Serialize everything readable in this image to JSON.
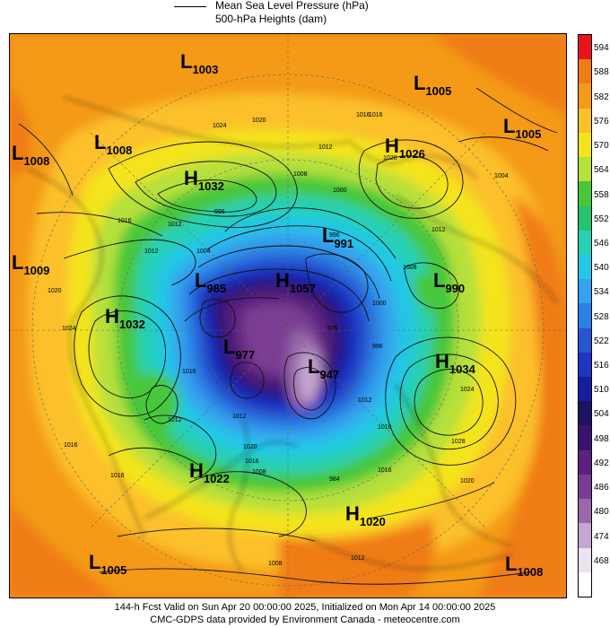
{
  "legend": {
    "line_label": "Mean Sea Level Pressure (hPa)",
    "fill_label": "500-hPa Heights (dam)"
  },
  "colorbar": {
    "levels": [
      "594",
      "588",
      "582",
      "576",
      "570",
      "564",
      "558",
      "552",
      "546",
      "540",
      "534",
      "528",
      "522",
      "516",
      "510",
      "504",
      "498",
      "492",
      "486",
      "480",
      "474",
      "468"
    ],
    "colors": [
      "#e8141c",
      "#f07c12",
      "#f49a18",
      "#fbc02a",
      "#f4e41e",
      "#b6e03a",
      "#46c83a",
      "#24c46e",
      "#26d0b4",
      "#24c8e6",
      "#34a4ee",
      "#2a80e4",
      "#2656d2",
      "#1e36c2",
      "#161e9e",
      "#1e1262",
      "#3a1270",
      "#5c2080",
      "#7a3c92",
      "#9868aa",
      "#c4a6d0",
      "#ece2f0",
      "#ffffff"
    ]
  },
  "systems": [
    {
      "type": "L",
      "value": "1003"
    },
    {
      "type": "L",
      "value": "1005"
    },
    {
      "type": "L",
      "value": "1008"
    },
    {
      "type": "L",
      "value": "1008"
    },
    {
      "type": "H",
      "value": "1026"
    },
    {
      "type": "L",
      "value": "1005"
    },
    {
      "type": "H",
      "value": "1032"
    },
    {
      "type": "L",
      "value": "1009"
    },
    {
      "type": "L",
      "value": "991"
    },
    {
      "type": "L",
      "value": "985"
    },
    {
      "type": "H",
      "value": "1057"
    },
    {
      "type": "L",
      "value": "990"
    },
    {
      "type": "H",
      "value": "1032"
    },
    {
      "type": "L",
      "value": "977"
    },
    {
      "type": "L",
      "value": "947"
    },
    {
      "type": "H",
      "value": "1034"
    },
    {
      "type": "H",
      "value": "1022"
    },
    {
      "type": "H",
      "value": "1020"
    },
    {
      "type": "L",
      "value": "1005"
    },
    {
      "type": "L",
      "value": "1008"
    }
  ],
  "isobar_labels": [
    "1024",
    "1020",
    "1016",
    "1012",
    "1008",
    "1000",
    "996",
    "1012",
    "1016",
    "1020",
    "1024",
    "1020",
    "1016",
    "1012",
    "1008",
    "1004",
    "1016",
    "1012",
    "1028",
    "1024",
    "1020",
    "1016",
    "1012",
    "1008",
    "1004",
    "1012",
    "1016",
    "1020",
    "996",
    "976",
    "996",
    "1000",
    "984",
    "1008",
    "1016",
    "1016",
    "1012",
    "1016",
    "1012"
  ],
  "footer": {
    "line1": "144-h Fcst Valid on Sun Apr 20 00:00:00 2025, Initialized on Mon Apr 14 00:00:00 2025",
    "line2": "CMC-GDPS data provided by Environment Canada - meteocentre.com"
  }
}
